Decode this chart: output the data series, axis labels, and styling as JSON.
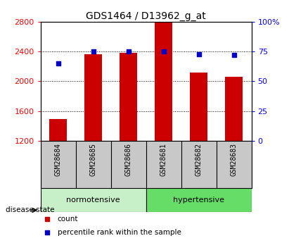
{
  "title": "GDS1464 / D13962_g_at",
  "samples": [
    "GSM28684",
    "GSM28685",
    "GSM28686",
    "GSM28681",
    "GSM28682",
    "GSM28683"
  ],
  "counts": [
    1490,
    2360,
    2385,
    2800,
    2120,
    2060
  ],
  "percentiles": [
    65,
    75,
    75,
    75,
    73,
    72
  ],
  "ylim_left": [
    1200,
    2800
  ],
  "ylim_right": [
    0,
    100
  ],
  "left_ticks": [
    1200,
    1600,
    2000,
    2400,
    2800
  ],
  "right_ticks": [
    0,
    25,
    50,
    75,
    100
  ],
  "right_tick_labels": [
    "0",
    "25",
    "50",
    "75",
    "100%"
  ],
  "bar_color": "#cc0000",
  "dot_color": "#0000cc",
  "normotensive_color": "#c8f0c8",
  "hypertensive_color": "#66dd66",
  "xtick_bg_color": "#c8c8c8",
  "plot_bg_color": "#ffffff",
  "grid_color": "#000000",
  "disease_state_label": "disease state",
  "legend_count": "count",
  "legend_pct": "percentile rank within the sample"
}
